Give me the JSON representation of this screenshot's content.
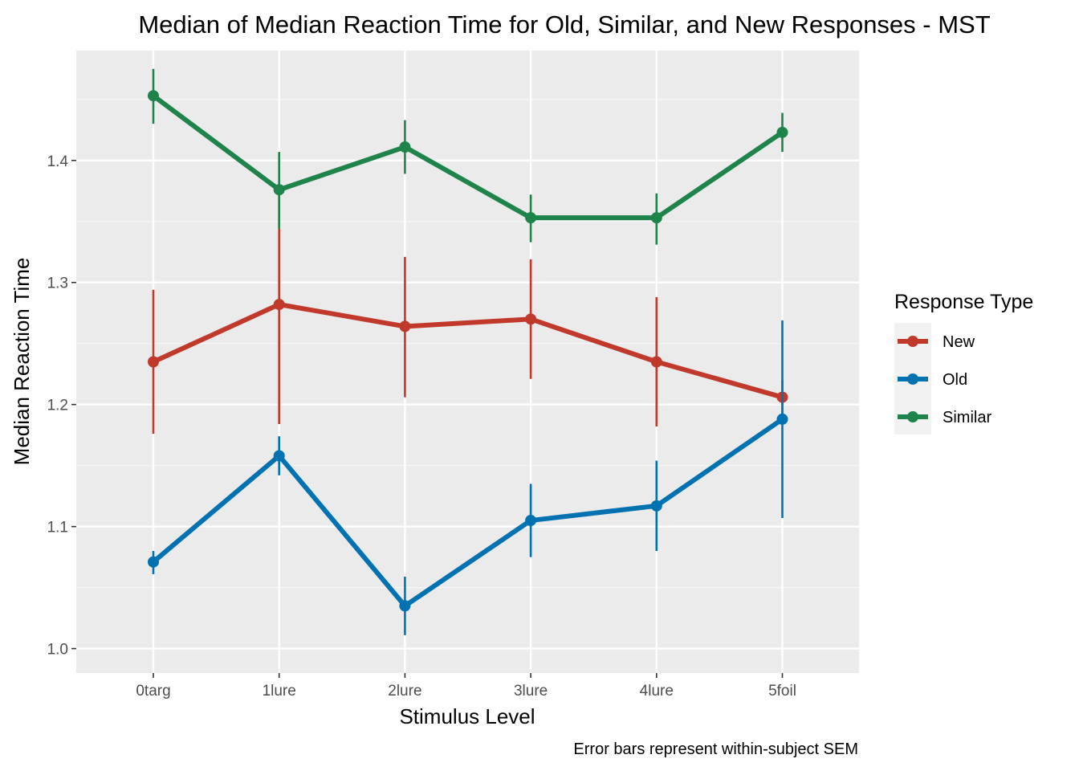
{
  "chart_data": {
    "type": "line",
    "title": "Median of Median Reaction Time for Old, Similar, and New Responses - MST",
    "xlabel": "Stimulus Level",
    "ylabel": "Median Reaction Time",
    "caption": "Error bars represent within-subject SEM",
    "categories": [
      "0targ",
      "1lure",
      "2lure",
      "3lure",
      "4lure",
      "5foil"
    ],
    "ylim": [
      0.98,
      1.49
    ],
    "yticks": [
      1.0,
      1.1,
      1.2,
      1.3,
      1.4
    ],
    "ytick_labels": [
      "1.0",
      "1.1",
      "1.2",
      "1.3",
      "1.4"
    ],
    "grid": true,
    "legend": {
      "title": "Response Type",
      "position": "right"
    },
    "series": [
      {
        "name": "New",
        "color": "#c0392b",
        "values": [
          1.235,
          1.282,
          1.264,
          1.27,
          1.235,
          1.206
        ],
        "err_low": [
          1.176,
          1.184,
          1.206,
          1.221,
          1.182,
          1.191
        ],
        "err_high": [
          1.294,
          1.38,
          1.321,
          1.319,
          1.288,
          1.22
        ]
      },
      {
        "name": "Old",
        "color": "#0072b2",
        "values": [
          1.071,
          1.158,
          1.035,
          1.105,
          1.117,
          1.188
        ],
        "err_low": [
          1.061,
          1.142,
          1.011,
          1.075,
          1.08,
          1.107
        ],
        "err_high": [
          1.08,
          1.174,
          1.059,
          1.135,
          1.154,
          1.269
        ]
      },
      {
        "name": "Similar",
        "color": "#1e8449",
        "values": [
          1.453,
          1.376,
          1.411,
          1.353,
          1.353,
          1.423
        ],
        "err_low": [
          1.43,
          1.344,
          1.389,
          1.333,
          1.331,
          1.407
        ],
        "err_high": [
          1.475,
          1.407,
          1.433,
          1.372,
          1.373,
          1.439
        ]
      }
    ]
  }
}
